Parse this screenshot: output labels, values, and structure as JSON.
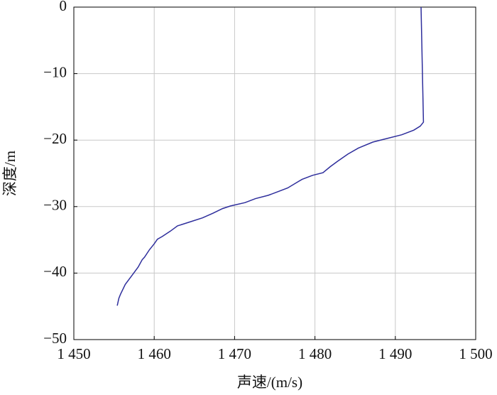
{
  "chart_data": {
    "type": "line",
    "xlabel": "声速/(m/s)",
    "ylabel": "深度/m",
    "x": [
      1493.2,
      1493.5,
      1493.1,
      1492.3,
      1490.8,
      1488.5,
      1487.2,
      1485.4,
      1484.1,
      1482.8,
      1481.9,
      1481.0,
      1479.7,
      1478.4,
      1477.7,
      1476.6,
      1475.3,
      1474.2,
      1472.6,
      1471.3,
      1469.5,
      1468.5,
      1467.3,
      1466.0,
      1464.2,
      1462.9,
      1462.0,
      1461.0,
      1460.4,
      1460.0,
      1459.4,
      1458.8,
      1458.5,
      1458.0,
      1457.2,
      1456.4,
      1455.8,
      1455.6,
      1455.4
    ],
    "series": [
      {
        "color": "#2e2e9c",
        "values": [
          0,
          -17.3,
          -17.9,
          -18.5,
          -19.2,
          -19.9,
          -20.3,
          -21.2,
          -22.1,
          -23.2,
          -24.0,
          -24.9,
          -25.3,
          -25.9,
          -26.4,
          -27.2,
          -27.8,
          -28.3,
          -28.8,
          -29.4,
          -29.9,
          -30.3,
          -31.0,
          -31.7,
          -32.4,
          -32.9,
          -33.7,
          -34.5,
          -34.9,
          -35.6,
          -36.5,
          -37.6,
          -38.0,
          -39.1,
          -40.4,
          -41.7,
          -43.2,
          -43.8,
          -44.9
        ]
      }
    ],
    "xlim": [
      1450,
      1500
    ],
    "xticks": [
      {
        "value": 1450,
        "label": "1 450"
      },
      {
        "value": 1460,
        "label": "1 460"
      },
      {
        "value": 1470,
        "label": "1 470"
      },
      {
        "value": 1480,
        "label": "1 480"
      },
      {
        "value": 1490,
        "label": "1 490"
      },
      {
        "value": 1500,
        "label": "1 500"
      }
    ],
    "ylim": [
      -50,
      0
    ],
    "yticks": [
      0,
      {
        "value": -10,
        "label": "−10"
      },
      {
        "value": -20,
        "label": "−20"
      },
      {
        "value": -30,
        "label": "−30"
      },
      {
        "value": -40,
        "label": "−40"
      },
      {
        "value": -50,
        "label": "−50"
      }
    ],
    "grid": true
  }
}
